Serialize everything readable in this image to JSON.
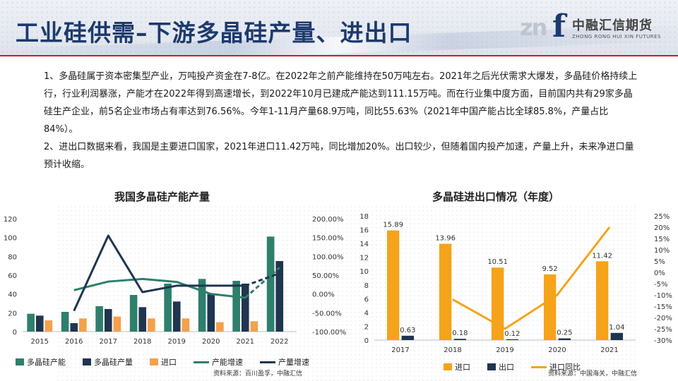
{
  "header": {
    "title": "工业硅供需–下游多晶硅产量、进出口",
    "logo_cn": "中融汇信期货",
    "logo_en": "ZHONG RONG HUI XIN FUTURES",
    "logo_mark": "zn",
    "logo_letter": "f"
  },
  "body": {
    "para1": "1、多晶硅属于资本密集型产业，万吨投产资金在7-8亿。在2022年之前产能维持在50万吨左右。2021年之后光伏需求大爆发，多晶硅价格持续上行，行业利润暴涨，产能才在2022年得到高速增长，到2022年10月已建成产能达到111.15万吨。而在行业集中度方面，目前国内共有29家多晶硅生产企业，前5名企业市场占有率达到76.56%。今年1-11月产量68.9万吨，同比55.63%（2021年中国产能占比全球85.8%，产量占比84%）。",
    "para2": "2、进出口数据来看，我国是主要进口国家，2021年进口11.42万吨，同比增加20%。出口较少，但随着国内投产加速，产量上升，未来净进口量预计收缩。"
  },
  "colors": {
    "title": "#1d3a6e",
    "capacity": "#2e7f6c",
    "output": "#1f3550",
    "import": "#f5a04a",
    "import_right": "#f5a31a",
    "export": "#1f3550",
    "accent_red": "#c61f1f"
  },
  "chart_data": [
    {
      "type": "bar",
      "title": "我国多晶硅产能产量",
      "categories": [
        "2015",
        "2016",
        "2017",
        "2018",
        "2019",
        "2020",
        "2021",
        "2022"
      ],
      "series": [
        {
          "name": "多晶硅产能",
          "kind": "bar",
          "axis": "left",
          "values": [
            19,
            21,
            27,
            39,
            51,
            56,
            54,
            101
          ]
        },
        {
          "name": "多晶硅产量",
          "kind": "bar",
          "axis": "left",
          "values": [
            17,
            9,
            24,
            26,
            32,
            40,
            51,
            75
          ]
        },
        {
          "name": "进口",
          "kind": "bar",
          "axis": "left",
          "values": [
            12,
            14,
            16,
            14,
            14,
            10,
            11,
            null
          ]
        },
        {
          "name": "产能增速",
          "kind": "line",
          "axis": "right",
          "values": [
            null,
            10,
            33,
            40,
            32,
            0,
            -10,
            70
          ],
          "dashed_from": 6
        },
        {
          "name": "产量增速",
          "kind": "line",
          "axis": "right",
          "values": [
            null,
            -45,
            155,
            5,
            22,
            22,
            22,
            55
          ],
          "dashed_from": 6
        }
      ],
      "ylim_left": [
        0,
        120
      ],
      "yticks_left": [
        "0",
        "20",
        "40",
        "60",
        "80",
        "100",
        "120"
      ],
      "ylim_right": [
        -100,
        200
      ],
      "yticks_right": [
        "-100.00%",
        "-50.00%",
        "0.00%",
        "50.00%",
        "100.00%",
        "150.00%",
        "200.00%"
      ],
      "legend": "bottom",
      "source": "资料来源：百川盈孚，中融汇信"
    },
    {
      "type": "bar",
      "title": "多晶硅进出口情况（年度）",
      "categories": [
        "2017",
        "2018",
        "2019",
        "2020",
        "2021"
      ],
      "series": [
        {
          "name": "进口",
          "kind": "bar",
          "axis": "left",
          "values": [
            15.89,
            13.96,
            10.51,
            9.52,
            11.42
          ],
          "labels": [
            "15.89",
            "13.96",
            "10.51",
            "9.52",
            "11.42"
          ]
        },
        {
          "name": "出口",
          "kind": "bar",
          "axis": "left",
          "values": [
            0.63,
            0.18,
            0.12,
            0.25,
            1.04
          ],
          "labels": [
            "0.63",
            "0.18",
            "0.12",
            "0.25",
            "1.04"
          ]
        },
        {
          "name": "进口同比",
          "kind": "line",
          "axis": "right",
          "values": [
            null,
            -12,
            -25,
            -10,
            20
          ]
        }
      ],
      "ylim_left": [
        0,
        18
      ],
      "yticks_left": [
        "0",
        "2",
        "4",
        "6",
        "8",
        "10",
        "12",
        "14",
        "16",
        "18"
      ],
      "ylim_right": [
        -30,
        25
      ],
      "yticks_right": [
        "-30%",
        "-25%",
        "-20%",
        "-15%",
        "-10%",
        "-5%",
        "0%",
        "5%",
        "10%",
        "15%",
        "20%",
        "25%"
      ],
      "legend": "bottom",
      "source": "资料来源：中国海关，中融汇信"
    }
  ]
}
